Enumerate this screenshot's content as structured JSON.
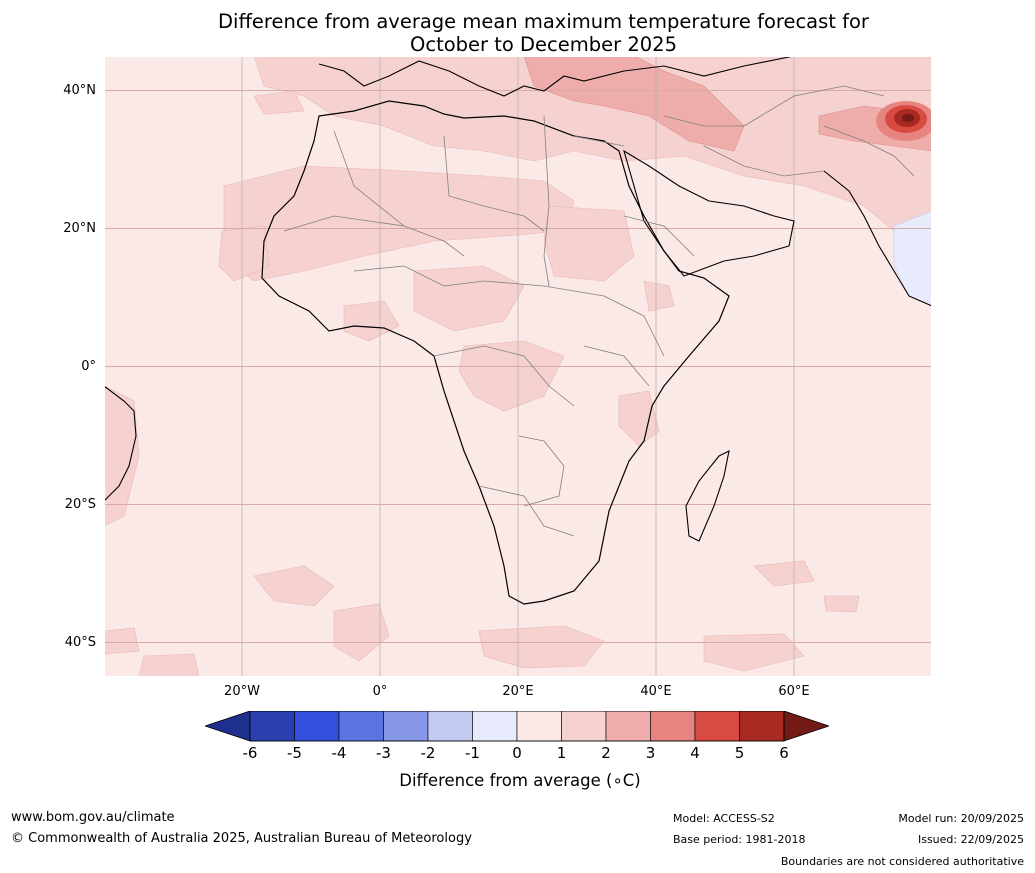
{
  "title_line1": "Difference from average mean maximum temperature forecast for",
  "title_line2": "October to December 2025",
  "map": {
    "extent_lon": [
      -40,
      80
    ],
    "extent_lat": [
      -45,
      45
    ],
    "latitude_labels": [
      "40°N",
      "20°N",
      "0°",
      "20°S",
      "40°S"
    ],
    "latitude_values": [
      40,
      20,
      0,
      -20,
      -40
    ],
    "longitude_labels": [
      "20°W",
      "0°",
      "20°E",
      "40°E",
      "60°E"
    ],
    "longitude_values": [
      -20,
      0,
      20,
      40,
      60
    ],
    "background_anomaly_range": "0 to 1",
    "hotspot": "Central Asia (near Tajikistan/Pakistan), anomaly above 5"
  },
  "colorbar": {
    "title": "Difference from average (∘C)",
    "tick_labels": [
      "-6",
      "-5",
      "-4",
      "-3",
      "-2",
      "-1",
      "0",
      "1",
      "2",
      "3",
      "4",
      "5",
      "6"
    ],
    "colors": [
      "#1f2f8e",
      "#2a3fb0",
      "#3250dd",
      "#5b73e3",
      "#8898e8",
      "#c3cbf3",
      "#e8ebfb",
      "#fbe9e7",
      "#f5d2d0",
      "#eeadaa",
      "#e68580",
      "#d94a42",
      "#a82822",
      "#741a16"
    ]
  },
  "footer": {
    "website": "www.bom.gov.au/climate",
    "copyright": "© Commonwealth of Australia 2025, Australian Bureau of Meteorology",
    "model": "Model: ACCESS-S2",
    "base_period": "Base period: 1981-2018",
    "model_run": "Model run: 20/09/2025",
    "issued": "Issued: 22/09/2025",
    "disclaimer": "Boundaries are not considered authoritative"
  }
}
